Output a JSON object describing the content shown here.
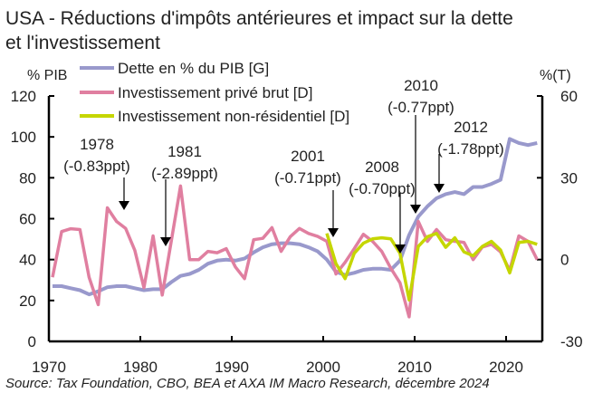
{
  "chart_data": {
    "type": "line",
    "title": "USA - Réductions d'impôts antérieures et impact sur la dette et l'investissement",
    "title_lines": [
      "USA - Réductions d'impôts antérieures et impact sur la dette",
      "et l'investissement"
    ],
    "ylabel_left": "% PIB",
    "ylabel_right": "%(T)",
    "source": "Source: Tax Foundation, CBO, BEA et AXA IM Macro Research, décembre 2024",
    "xlim": [
      1970,
      2024
    ],
    "ylim_left": [
      0,
      120
    ],
    "ylim_right": [
      -30,
      60
    ],
    "x_ticks": [
      "1970",
      "1980",
      "1990",
      "2000",
      "2010",
      "2020"
    ],
    "y_ticks_left": [
      "0",
      "20",
      "40",
      "60",
      "80",
      "100",
      "120"
    ],
    "y_ticks_right": [
      "-30",
      "0",
      "30",
      "60"
    ],
    "grid": false,
    "legend_position": "top-left",
    "x": [
      1970,
      1971,
      1972,
      1973,
      1974,
      1975,
      1976,
      1977,
      1978,
      1979,
      1980,
      1981,
      1982,
      1983,
      1984,
      1985,
      1986,
      1987,
      1988,
      1989,
      1990,
      1991,
      1992,
      1993,
      1994,
      1995,
      1996,
      1997,
      1998,
      1999,
      2000,
      2001,
      2002,
      2003,
      2004,
      2005,
      2006,
      2007,
      2008,
      2009,
      2010,
      2011,
      2012,
      2013,
      2014,
      2015,
      2016,
      2017,
      2018,
      2019,
      2020,
      2021,
      2022,
      2023
    ],
    "series": [
      {
        "name": "Dette en % du PIB [G]",
        "axis": "left",
        "color": "#9999cc",
        "values": [
          27,
          27,
          26,
          25,
          23,
          24.5,
          26.5,
          27,
          27,
          26,
          25,
          25.5,
          25.5,
          29,
          32,
          33,
          35,
          38,
          39.5,
          40,
          39.5,
          40.5,
          43.5,
          46,
          47.5,
          48,
          48,
          47.5,
          46,
          44,
          40,
          34,
          32.5,
          33.5,
          35,
          35.5,
          35.5,
          35,
          39.5,
          52,
          61,
          66,
          70,
          72,
          73,
          72,
          75.5,
          75.5,
          77,
          79,
          99,
          97,
          96,
          97
        ]
      },
      {
        "name": "Investissement privé brut [D]",
        "axis": "right",
        "color": "#e07fa0",
        "values": [
          -6.5,
          10.3,
          11.3,
          11,
          -6.5,
          -16.5,
          19,
          14,
          11.4,
          3.4,
          -10.3,
          8.7,
          -13,
          7,
          27,
          0,
          0,
          3,
          2.5,
          4,
          -2.7,
          -7,
          7.3,
          7.8,
          11.7,
          3,
          8.4,
          11.4,
          9.6,
          8.5,
          6.7,
          -5.3,
          -1,
          4,
          9.3,
          6.7,
          3,
          -3.2,
          -8.5,
          -21,
          14,
          6.7,
          11,
          7.3,
          6.7,
          6.3,
          0,
          4.6,
          5.6,
          2.8,
          -4,
          8.7,
          6.7,
          0
        ]
      },
      {
        "name": "Investissement non-résidentiel [D]",
        "axis": "right",
        "color": "#c5d600",
        "values": [
          null,
          null,
          null,
          null,
          null,
          null,
          null,
          null,
          null,
          null,
          null,
          null,
          null,
          null,
          null,
          null,
          null,
          null,
          null,
          null,
          null,
          null,
          null,
          null,
          null,
          null,
          null,
          null,
          null,
          null,
          9.6,
          -1.5,
          -7,
          2.3,
          6,
          7.6,
          8,
          7.6,
          2.3,
          -14.8,
          4.8,
          8.4,
          9.6,
          4.5,
          8,
          2.8,
          1.4,
          4.8,
          6.7,
          3.5,
          -4.9,
          6.3,
          6.7,
          5.6
        ]
      }
    ],
    "annotations": [
      {
        "year": "1978",
        "impact": "(-0.83ppt)"
      },
      {
        "year": "1981",
        "impact": "(-2.89ppt)"
      },
      {
        "year": "2001",
        "impact": "(-0.71ppt)"
      },
      {
        "year": "2008",
        "impact": "(-0.70ppt)"
      },
      {
        "year": "2010",
        "impact": "(-0.77ppt)"
      },
      {
        "year": "2012",
        "impact": "(-1.78ppt)"
      }
    ]
  }
}
